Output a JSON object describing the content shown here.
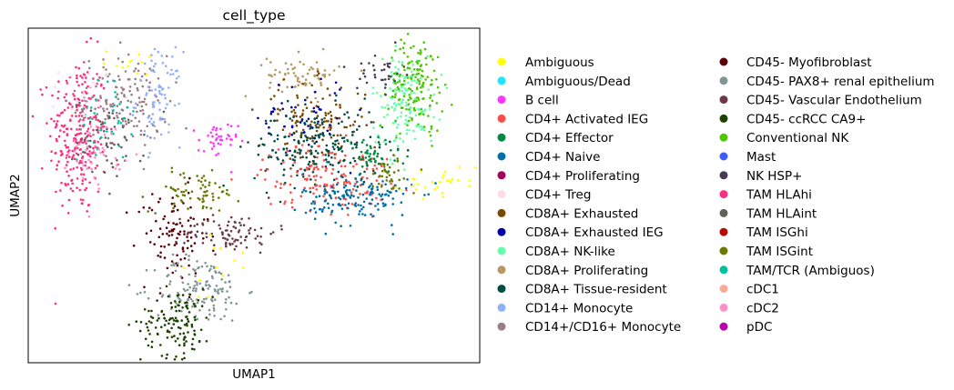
{
  "chart_data": {
    "type": "scatter",
    "title": "cell_type",
    "xlabel": "UMAP1",
    "ylabel": "UMAP2",
    "xlim": [
      0,
      100
    ],
    "ylim": [
      0,
      100
    ],
    "x_ticks": [],
    "y_ticks": [],
    "grid": false,
    "legend_position": "right",
    "legend_columns": 2,
    "categories": [
      {
        "name": "Ambiguous",
        "color": "#FFFF00"
      },
      {
        "name": "Ambiguous/Dead",
        "color": "#1CE6FF"
      },
      {
        "name": "B cell",
        "color": "#FF34FF"
      },
      {
        "name": "CD4+ Activated IEG",
        "color": "#FF4A46"
      },
      {
        "name": "CD4+ Effector",
        "color": "#008941"
      },
      {
        "name": "CD4+ Naive",
        "color": "#006FA6"
      },
      {
        "name": "CD4+ Proliferating",
        "color": "#A30059"
      },
      {
        "name": "CD4+ Treg",
        "color": "#FFDBE5"
      },
      {
        "name": "CD8A+ Exhausted",
        "color": "#7A4900"
      },
      {
        "name": "CD8A+ Exhausted IEG",
        "color": "#0000A6"
      },
      {
        "name": "CD8A+ NK-like",
        "color": "#63FFAC"
      },
      {
        "name": "CD8A+ Proliferating",
        "color": "#B79762"
      },
      {
        "name": "CD8A+ Tissue-resident",
        "color": "#004D43"
      },
      {
        "name": "CD14+ Monocyte",
        "color": "#8FB0FF"
      },
      {
        "name": "CD14+/CD16+ Monocyte",
        "color": "#997D87"
      },
      {
        "name": "CD45- Myofibroblast",
        "color": "#5A0007"
      },
      {
        "name": "CD45- PAX8+ renal epithelium",
        "color": "#809693"
      },
      {
        "name": "CD45- Vascular Endothelium",
        "color": "#6A3A4C"
      },
      {
        "name": "CD45- ccRCC CA9+",
        "color": "#1B4400"
      },
      {
        "name": "Conventional NK",
        "color": "#4FC601"
      },
      {
        "name": "Mast",
        "color": "#3B5DFF"
      },
      {
        "name": "NK HSP+",
        "color": "#4A3B53"
      },
      {
        "name": "TAM HLAhi",
        "color": "#FF2F80"
      },
      {
        "name": "TAM HLAint",
        "color": "#61615A"
      },
      {
        "name": "TAM ISGhi",
        "color": "#BA0900"
      },
      {
        "name": "TAM ISGint",
        "color": "#6B7900"
      },
      {
        "name": "TAM/TCR (Ambiguos)",
        "color": "#00C2A0"
      },
      {
        "name": "cDC1",
        "color": "#FFAA92"
      },
      {
        "name": "cDC2",
        "color": "#FF90C9"
      },
      {
        "name": "pDC",
        "color": "#B903AA"
      }
    ],
    "clusters": [
      {
        "category": "TAM HLAhi",
        "cx": 11,
        "cy": 68,
        "sx": 3.2,
        "sy": 12,
        "n": 260
      },
      {
        "category": "CD14+/CD16+ Monocyte",
        "cx": 21,
        "cy": 78,
        "sx": 5,
        "sy": 7,
        "n": 150
      },
      {
        "category": "CD14+ Monocyte",
        "cx": 29,
        "cy": 79,
        "sx": 2.5,
        "sy": 7,
        "n": 80
      },
      {
        "category": "TAM HLAint",
        "cx": 18,
        "cy": 67,
        "sx": 4,
        "sy": 6,
        "n": 60
      },
      {
        "category": "TAM/TCR (Ambiguos)",
        "cx": 17,
        "cy": 72,
        "sx": 3,
        "sy": 6,
        "n": 35
      },
      {
        "category": "cDC2",
        "cx": 15,
        "cy": 63,
        "sx": 3,
        "sy": 5,
        "n": 45
      },
      {
        "category": "CD4+ Treg",
        "cx": 13,
        "cy": 80,
        "sx": 3,
        "sy": 4,
        "n": 20
      },
      {
        "category": "Ambiguous",
        "cx": 23,
        "cy": 90,
        "sx": 3,
        "sy": 2,
        "n": 12
      },
      {
        "category": "B cell",
        "cx": 42,
        "cy": 66,
        "sx": 2.2,
        "sy": 3,
        "n": 40
      },
      {
        "category": "TAM ISGint",
        "cx": 37,
        "cy": 51,
        "sx": 5,
        "sy": 3,
        "n": 70
      },
      {
        "category": "CD45- Myofibroblast",
        "cx": 32,
        "cy": 38,
        "sx": 4,
        "sy": 7,
        "n": 95
      },
      {
        "category": "CD45- Vascular Endothelium",
        "cx": 45,
        "cy": 39,
        "sx": 5,
        "sy": 3,
        "n": 85
      },
      {
        "category": "CD45- PAX8+ renal epithelium",
        "cx": 38,
        "cy": 22,
        "sx": 5,
        "sy": 5,
        "n": 140
      },
      {
        "category": "CD45- ccRCC CA9+",
        "cx": 33,
        "cy": 12,
        "sx": 4,
        "sy": 5,
        "n": 130
      },
      {
        "category": "Ambiguous",
        "cx": 41,
        "cy": 30,
        "sx": 4,
        "sy": 5,
        "n": 12
      },
      {
        "category": "CD8A+ Proliferating",
        "cx": 61,
        "cy": 86,
        "sx": 4,
        "sy": 3,
        "n": 65
      },
      {
        "category": "CD8A+ Exhausted",
        "cx": 63,
        "cy": 72,
        "sx": 6,
        "sy": 6,
        "n": 120
      },
      {
        "category": "CD8A+ Exhausted IEG",
        "cx": 61,
        "cy": 74,
        "sx": 5,
        "sy": 6,
        "n": 55
      },
      {
        "category": "CD8A+ Tissue-resident",
        "cx": 64,
        "cy": 64,
        "sx": 7,
        "sy": 6,
        "n": 200
      },
      {
        "category": "CD4+ Activated IEG",
        "cx": 66,
        "cy": 56,
        "sx": 7,
        "sy": 5,
        "n": 150
      },
      {
        "category": "CD4+ Naive",
        "cx": 73,
        "cy": 49,
        "sx": 6,
        "sy": 4,
        "n": 150
      },
      {
        "category": "CD8A+ NK-like",
        "cx": 83,
        "cy": 78,
        "sx": 3.5,
        "sy": 7,
        "n": 150
      },
      {
        "category": "Conventional NK",
        "cx": 86,
        "cy": 83,
        "sx": 3,
        "sy": 7,
        "n": 150
      },
      {
        "category": "NK HSP+",
        "cx": 78,
        "cy": 87,
        "sx": 2.5,
        "sy": 3,
        "n": 35
      },
      {
        "category": "Ambiguous",
        "cx": 90,
        "cy": 54,
        "sx": 4,
        "sy": 2,
        "n": 28
      },
      {
        "category": "CD4+ Effector",
        "cx": 76,
        "cy": 62,
        "sx": 3.5,
        "sy": 3,
        "n": 50
      },
      {
        "category": "TAM ISGint",
        "cx": 80,
        "cy": 56,
        "sx": 3,
        "sy": 3,
        "n": 35
      }
    ]
  }
}
